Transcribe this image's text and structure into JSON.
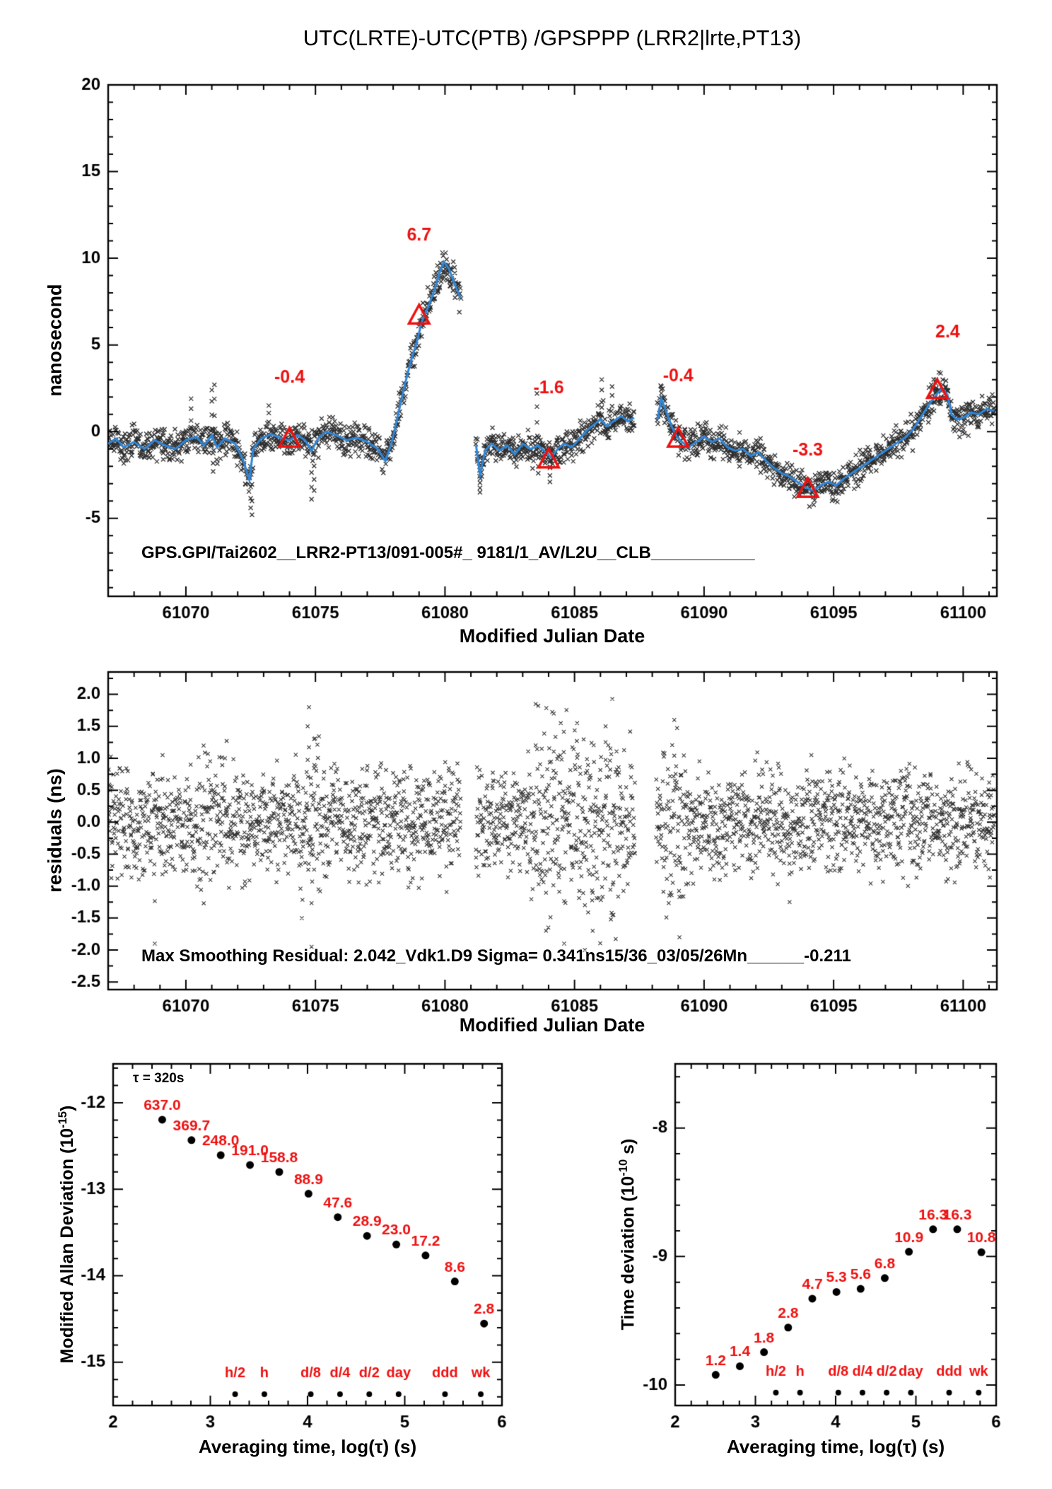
{
  "title": "UTC(LRTE)-UTC(PTB)  /GPSPPP  (LRR2|lrte,PT13)",
  "colors": {
    "accent_blue": "#2f86d8",
    "accent_red": "#ee1111",
    "ink": "#000000"
  },
  "chart_data": [
    {
      "name": "phase-comparison",
      "type": "line+scatter",
      "ylabel": "nanosecond",
      "xlabel": "Modified Julian Date",
      "xlim": [
        61067,
        61101.3
      ],
      "ylim": [
        -9.5,
        20
      ],
      "xticks": {
        "values": [
          61070,
          61075,
          61080,
          61085,
          61090,
          61095,
          61100
        ],
        "labels": [
          "61070",
          "61075",
          "61080",
          "61085",
          "61090",
          "61095",
          "61100"
        ],
        "minor_step": 1
      },
      "yticks": {
        "values": [
          -5,
          0,
          5,
          10,
          15,
          20
        ],
        "labels": [
          "-5",
          "0",
          "5",
          "10",
          "15",
          "20"
        ],
        "minor_step": 1
      },
      "annotation": "GPS.GPI/Tai2602__LRR2-PT13/091-005#_  9181/1_AV/L2U__CLB___________",
      "noise_sigma": 0.45,
      "segments": [
        [
          [
            61067.0,
            -0.7
          ],
          [
            61067.3,
            -0.4
          ],
          [
            61067.6,
            -0.9
          ],
          [
            61068.0,
            -0.6
          ],
          [
            61068.4,
            -1.0
          ],
          [
            61068.8,
            -0.5
          ],
          [
            61069.2,
            -0.8
          ],
          [
            61069.6,
            -1.0
          ],
          [
            61070.0,
            -0.5
          ],
          [
            61070.4,
            -0.3
          ],
          [
            61070.7,
            -0.8
          ],
          [
            61071.0,
            -0.2
          ],
          [
            61071.2,
            -0.9
          ],
          [
            61071.5,
            -0.4
          ],
          [
            61071.9,
            -0.7
          ],
          [
            61072.2,
            -1.6
          ],
          [
            61072.45,
            -2.8
          ],
          [
            61072.6,
            -1.0
          ],
          [
            61072.9,
            -0.4
          ],
          [
            61073.3,
            -0.15
          ],
          [
            61073.7,
            -0.4
          ],
          [
            61074.0,
            -0.5
          ],
          [
            61074.3,
            -0.2
          ],
          [
            61074.6,
            -0.5
          ],
          [
            61074.85,
            -1.1
          ],
          [
            61075.1,
            -0.4
          ],
          [
            61075.4,
            0.0
          ],
          [
            61075.8,
            -0.2
          ],
          [
            61076.2,
            -0.5
          ],
          [
            61076.6,
            -0.35
          ],
          [
            61077.0,
            -0.6
          ],
          [
            61077.4,
            -1.0
          ],
          [
            61077.7,
            -1.7
          ],
          [
            61077.95,
            -0.6
          ],
          [
            61078.15,
            0.7
          ],
          [
            61078.4,
            2.4
          ],
          [
            61078.65,
            3.9
          ],
          [
            61078.9,
            5.1
          ],
          [
            61079.1,
            6.3
          ],
          [
            61079.35,
            7.2
          ],
          [
            61079.6,
            8.2
          ],
          [
            61079.8,
            9.2
          ],
          [
            61079.95,
            9.8
          ],
          [
            61080.15,
            9.4
          ],
          [
            61080.35,
            8.6
          ],
          [
            61080.6,
            7.7
          ]
        ],
        [
          [
            61081.2,
            -0.8
          ],
          [
            61081.35,
            -2.5
          ],
          [
            61081.55,
            -1.1
          ],
          [
            61081.8,
            -0.7
          ],
          [
            61082.1,
            -1.1
          ],
          [
            61082.4,
            -0.8
          ],
          [
            61082.7,
            -1.3
          ],
          [
            61083.0,
            -0.7
          ],
          [
            61083.3,
            -1.0
          ],
          [
            61083.6,
            -0.8
          ],
          [
            61083.9,
            -1.2
          ],
          [
            61084.1,
            -1.5
          ],
          [
            61084.35,
            -1.0
          ],
          [
            61084.6,
            -0.7
          ],
          [
            61084.9,
            -0.9
          ],
          [
            61085.2,
            -0.4
          ],
          [
            61085.5,
            0.1
          ],
          [
            61085.75,
            0.4
          ],
          [
            61086.0,
            0.7
          ],
          [
            61086.25,
            0.3
          ],
          [
            61086.5,
            0.6
          ],
          [
            61086.8,
            0.9
          ],
          [
            61087.05,
            0.6
          ],
          [
            61087.3,
            0.8
          ]
        ],
        [
          [
            61088.2,
            0.7
          ],
          [
            61088.35,
            1.9
          ],
          [
            61088.55,
            1.1
          ],
          [
            61088.75,
            0.3
          ],
          [
            61088.95,
            -0.3
          ],
          [
            61089.15,
            -0.6
          ],
          [
            61089.4,
            -0.9
          ],
          [
            61089.7,
            -0.6
          ],
          [
            61090.0,
            -0.3
          ],
          [
            61090.3,
            -0.6
          ],
          [
            61090.6,
            -0.4
          ],
          [
            61090.9,
            -0.9
          ],
          [
            61091.2,
            -1.1
          ],
          [
            61091.5,
            -1.0
          ],
          [
            61091.8,
            -1.4
          ],
          [
            61092.1,
            -1.2
          ],
          [
            61092.4,
            -1.7
          ],
          [
            61092.7,
            -2.1
          ],
          [
            61093.0,
            -2.4
          ],
          [
            61093.3,
            -2.6
          ],
          [
            61093.6,
            -2.9
          ],
          [
            61093.9,
            -3.2
          ],
          [
            61094.2,
            -3.4
          ],
          [
            61094.5,
            -3.1
          ],
          [
            61094.8,
            -2.9
          ],
          [
            61095.1,
            -3.1
          ],
          [
            61095.4,
            -2.7
          ],
          [
            61095.7,
            -2.4
          ],
          [
            61096.0,
            -2.1
          ],
          [
            61096.3,
            -1.8
          ],
          [
            61096.6,
            -1.5
          ],
          [
            61096.9,
            -1.2
          ],
          [
            61097.2,
            -0.9
          ],
          [
            61097.5,
            -0.6
          ],
          [
            61097.8,
            -0.3
          ],
          [
            61098.1,
            0.2
          ],
          [
            61098.4,
            0.9
          ],
          [
            61098.7,
            1.6
          ],
          [
            61099.0,
            2.2
          ],
          [
            61099.2,
            2.5
          ],
          [
            61099.4,
            2.1
          ],
          [
            61099.55,
            1.0
          ],
          [
            61099.75,
            0.7
          ],
          [
            61100.0,
            0.8
          ],
          [
            61100.3,
            1.1
          ],
          [
            61100.6,
            1.0
          ],
          [
            61100.9,
            1.3
          ],
          [
            61101.2,
            1.2
          ]
        ]
      ],
      "spikes": [
        [
          61070.2,
          1.9
        ],
        [
          61071.0,
          2.4
        ],
        [
          61071.1,
          2.7
        ],
        [
          61071.05,
          -2.3
        ],
        [
          61072.5,
          -4.4
        ],
        [
          61072.55,
          -4.8
        ],
        [
          61073.2,
          1.5
        ],
        [
          61074.85,
          -3.9
        ],
        [
          61074.95,
          -3.4
        ],
        [
          61081.35,
          -3.5
        ],
        [
          61083.55,
          2.2
        ],
        [
          61083.6,
          -2.4
        ],
        [
          61084.05,
          -2.9
        ],
        [
          61086.05,
          3.0
        ],
        [
          61086.45,
          2.6
        ],
        [
          61088.35,
          2.6
        ],
        [
          61098.95,
          3.0
        ]
      ],
      "triangles": [
        {
          "x": 61074,
          "y": -0.4,
          "label": "-0.4",
          "lx": 61074,
          "ly": 3.1
        },
        {
          "x": 61079,
          "y": 6.7,
          "label": "6.7",
          "lx": 61079,
          "ly": 11.3
        },
        {
          "x": 61084,
          "y": -1.6,
          "label": "-1.6",
          "lx": 61084,
          "ly": 2.5
        },
        {
          "x": 61089,
          "y": -0.4,
          "label": "-0.4",
          "lx": 61089,
          "ly": 3.2
        },
        {
          "x": 61094,
          "y": -3.3,
          "label": "-3.3",
          "lx": 61094,
          "ly": -1.1
        },
        {
          "x": 61099,
          "y": 2.4,
          "label": "2.4",
          "lx": 61099.4,
          "ly": 5.7
        }
      ]
    },
    {
      "name": "residuals",
      "type": "scatter",
      "ylabel": "residuals (ns)",
      "xlabel": "Modified Julian Date",
      "xlim": [
        61067,
        61101.3
      ],
      "ylim": [
        -2.62,
        2.35
      ],
      "xticks": {
        "values": [
          61070,
          61075,
          61080,
          61085,
          61090,
          61095,
          61100
        ],
        "labels": [
          "61070",
          "61075",
          "61080",
          "61085",
          "61090",
          "61095",
          "61100"
        ],
        "minor_step": 1
      },
      "yticks": {
        "values": [
          2.0,
          1.5,
          1.0,
          0.5,
          0.0,
          -0.5,
          -1.0,
          -1.5,
          -2.0,
          -2.5
        ],
        "labels": [
          "2.0",
          "1.5",
          "1.0",
          "0.5",
          "0.0",
          "-0.5",
          "-1.0",
          "-1.5",
          "-2.0",
          "-2.5"
        ],
        "minor_step": 0.25
      },
      "annotation": "Max Smoothing Residual: 2.042_Vdk1.D9  Sigma= 0.341ns15/36_03/05/26Mn______-0.211",
      "spans": [
        [
          61067,
          61080.6
        ],
        [
          61081.2,
          61087.35
        ],
        [
          61088.15,
          61101.2
        ]
      ],
      "sigma_base": 0.4,
      "sigma_regions": [
        [
          61070.4,
          61071.6,
          0.55
        ],
        [
          61074.4,
          61075.2,
          0.65
        ],
        [
          61083.2,
          61087.3,
          0.68
        ],
        [
          61088.2,
          61089.4,
          0.6
        ]
      ],
      "outliers": [
        [
          61068.8,
          -1.9
        ],
        [
          61069.1,
          1.05
        ],
        [
          61074.7,
          1.5
        ],
        [
          61074.75,
          1.8
        ],
        [
          61074.85,
          -1.95
        ],
        [
          61074.95,
          1.3
        ],
        [
          61083.5,
          1.85
        ],
        [
          61083.9,
          -1.7
        ],
        [
          61084.2,
          1.7
        ],
        [
          61084.6,
          -1.9
        ],
        [
          61085.1,
          1.55
        ],
        [
          61085.4,
          -2.0
        ],
        [
          61085.7,
          -1.7
        ],
        [
          61086.2,
          1.5
        ],
        [
          61086.5,
          -1.45
        ],
        [
          61088.85,
          1.6
        ],
        [
          61089.05,
          -1.8
        ],
        [
          61093.3,
          -1.25
        ]
      ]
    },
    {
      "name": "modified-allan-deviation",
      "type": "scatter",
      "ylabel_prefix": "Modified Allan Deviation (10",
      "ylabel_sup": "-15",
      "ylabel_suffix": ")",
      "xlabel": "Averaging time, log(τ) (s)",
      "note": "τ = 320s",
      "xlim": [
        2,
        6
      ],
      "ylim": [
        -15.5,
        -11.55
      ],
      "xticks": {
        "values": [
          2,
          3,
          4,
          5,
          6
        ],
        "labels": [
          "2",
          "3",
          "4",
          "5",
          "6"
        ],
        "minor_step": 0.2
      },
      "yticks": {
        "values": [
          -12,
          -13,
          -14,
          -15
        ],
        "labels": [
          "-12",
          "-13",
          "-14",
          "-15"
        ],
        "minor_step": 0.2
      },
      "exponent": -15,
      "x": [
        2.505,
        2.806,
        3.107,
        3.408,
        3.709,
        4.01,
        4.311,
        4.612,
        4.913,
        5.214,
        5.515,
        5.816
      ],
      "values": [
        637.0,
        369.7,
        248.0,
        191.0,
        158.8,
        88.9,
        47.6,
        28.9,
        23.0,
        17.2,
        8.6,
        2.8
      ],
      "labels": [
        "637.0",
        "369.7",
        "248.0",
        "191.0",
        "158.8",
        "88.9",
        "47.6",
        "28.9",
        "23.0",
        "17.2",
        "8.6",
        "2.8"
      ],
      "tau_marks": [
        {
          "x": 3.255,
          "label": "h/2"
        },
        {
          "x": 3.556,
          "label": "h"
        },
        {
          "x": 4.033,
          "label": "d/8"
        },
        {
          "x": 4.334,
          "label": "d/4"
        },
        {
          "x": 4.635,
          "label": "d/2"
        },
        {
          "x": 4.937,
          "label": "day"
        },
        {
          "x": 5.414,
          "label": "ddd"
        },
        {
          "x": 5.782,
          "label": "wk"
        }
      ],
      "tau_dot_y": -15.37,
      "tau_label_y": -15.13
    },
    {
      "name": "time-deviation",
      "type": "scatter",
      "ylabel_prefix": "Time deviation (10",
      "ylabel_sup": "-10",
      "ylabel_suffix": " s)",
      "xlabel": "Averaging time, log(τ) (s)",
      "xlim": [
        2,
        6
      ],
      "ylim": [
        -10.16,
        -7.5
      ],
      "xticks": {
        "values": [
          2,
          3,
          4,
          5,
          6
        ],
        "labels": [
          "2",
          "3",
          "4",
          "5",
          "6"
        ],
        "minor_step": 0.2
      },
      "yticks": {
        "values": [
          -8,
          -9,
          -10
        ],
        "labels": [
          "-8",
          "-9",
          "-10"
        ],
        "minor_step": 0.2
      },
      "exponent": -10,
      "x": [
        2.505,
        2.806,
        3.107,
        3.408,
        3.709,
        4.01,
        4.311,
        4.612,
        4.913,
        5.214,
        5.515,
        5.816
      ],
      "values": [
        1.2,
        1.4,
        1.8,
        2.8,
        4.7,
        5.3,
        5.6,
        6.8,
        10.9,
        16.3,
        16.3,
        10.8
      ],
      "labels": [
        "1.2",
        "1.4",
        "1.8",
        "2.8",
        "4.7",
        "5.3",
        "5.6",
        "6.8",
        "10.9",
        "16.3",
        "16.3",
        "10.8"
      ],
      "tau_marks": [
        {
          "x": 3.255,
          "label": "h/2"
        },
        {
          "x": 3.556,
          "label": "h"
        },
        {
          "x": 4.033,
          "label": "d/8"
        },
        {
          "x": 4.334,
          "label": "d/4"
        },
        {
          "x": 4.635,
          "label": "d/2"
        },
        {
          "x": 4.937,
          "label": "day"
        },
        {
          "x": 5.414,
          "label": "ddd"
        },
        {
          "x": 5.782,
          "label": "wk"
        }
      ],
      "tau_dot_y": -10.06,
      "tau_label_y": -9.9
    }
  ]
}
